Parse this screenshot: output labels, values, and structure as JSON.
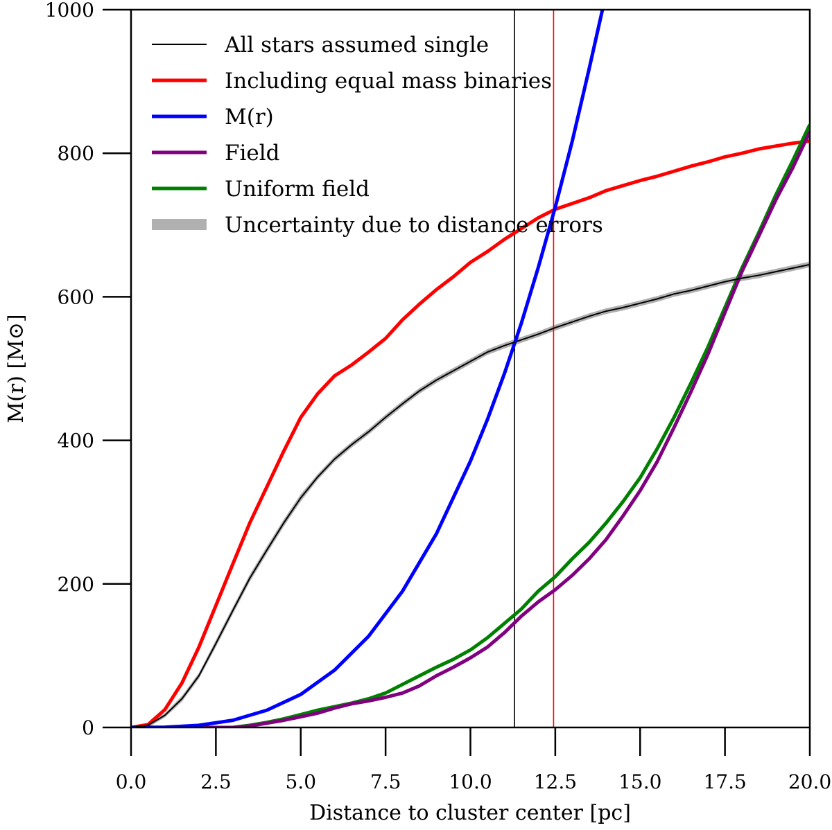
{
  "chart_data": {
    "type": "line",
    "xlabel": "Distance to cluster center [pc]",
    "ylabel": "M(r) [M⊙]",
    "xlim": [
      0,
      20
    ],
    "ylim": [
      0,
      1000
    ],
    "xticks": [
      0,
      2.5,
      5,
      7.5,
      10,
      12.5,
      15,
      17.5,
      20
    ],
    "xtick_labels": [
      "0.0",
      "2.5",
      "5.0",
      "7.5",
      "10.0",
      "12.5",
      "15.0",
      "17.5",
      "20.0"
    ],
    "yticks": [
      0,
      200,
      400,
      600,
      800,
      1000
    ],
    "ytick_labels": [
      "0",
      "200",
      "400",
      "600",
      "800",
      "1000"
    ],
    "grid": false,
    "legend_position": "upper-left",
    "vertical_lines": [
      {
        "x": 11.3,
        "color": "#000000"
      },
      {
        "x": 12.45,
        "color": "#ff0000"
      }
    ],
    "uncertainty_band": {
      "name": "Uncertainty due to distance errors",
      "color": "#b0b0b0",
      "x": [
        0,
        0.5,
        1,
        1.5,
        2,
        2.5,
        3,
        3.5,
        4,
        4.5,
        5,
        5.5,
        6,
        6.5,
        7,
        7.5,
        8,
        8.5,
        9,
        9.5,
        10,
        10.5,
        11,
        11.5,
        12,
        12.5,
        13,
        13.5,
        14,
        14.5,
        15,
        15.5,
        16,
        16.5,
        17,
        17.5,
        18,
        18.5,
        19,
        19.5,
        20
      ],
      "lower": [
        0,
        0,
        14,
        36,
        68,
        112,
        158,
        203,
        242,
        280,
        315,
        345,
        370,
        390,
        408,
        428,
        447,
        465,
        480,
        493,
        506,
        519,
        528,
        536,
        544,
        553,
        561,
        569,
        576,
        581,
        587,
        593,
        600,
        605,
        611,
        617,
        622,
        626,
        631,
        636,
        641
      ],
      "upper": [
        2,
        6,
        20,
        44,
        76,
        122,
        168,
        213,
        252,
        290,
        325,
        353,
        378,
        398,
        416,
        436,
        455,
        473,
        488,
        501,
        514,
        527,
        536,
        544,
        552,
        561,
        569,
        577,
        584,
        589,
        595,
        601,
        608,
        613,
        619,
        625,
        630,
        634,
        639,
        644,
        649
      ]
    },
    "series": [
      {
        "name": "All stars assumed single",
        "color": "#000000",
        "x": [
          0,
          0.5,
          1,
          1.5,
          2,
          2.5,
          3,
          3.5,
          4,
          4.5,
          5,
          5.5,
          6,
          6.5,
          7,
          7.5,
          8,
          8.5,
          9,
          9.5,
          10,
          10.5,
          11,
          11.5,
          12,
          12.5,
          13,
          13.5,
          14,
          14.5,
          15,
          15.5,
          16,
          16.5,
          17,
          17.5,
          18,
          18.5,
          19,
          19.5,
          20
        ],
        "y": [
          0,
          3,
          17,
          40,
          72,
          117,
          163,
          208,
          247,
          285,
          320,
          349,
          374,
          394,
          412,
          432,
          451,
          469,
          484,
          497,
          510,
          523,
          532,
          540,
          548,
          557,
          565,
          573,
          580,
          585,
          591,
          597,
          604,
          609,
          615,
          621,
          626,
          630,
          635,
          640,
          645
        ]
      },
      {
        "name": "Including equal mass binaries",
        "color": "#ff0000",
        "x": [
          0,
          0.5,
          1,
          1.5,
          2,
          2.5,
          3,
          3.5,
          4,
          4.5,
          5,
          5.5,
          6,
          6.5,
          7,
          7.5,
          8,
          8.5,
          9,
          9.5,
          10,
          10.5,
          11,
          11.5,
          12,
          12.5,
          13,
          13.5,
          14,
          14.5,
          15,
          15.5,
          16,
          16.5,
          17,
          17.5,
          18,
          18.5,
          19,
          19.5,
          20
        ],
        "y": [
          0,
          4,
          25,
          62,
          112,
          170,
          228,
          285,
          335,
          385,
          432,
          465,
          490,
          505,
          523,
          542,
          568,
          590,
          610,
          628,
          648,
          663,
          680,
          695,
          710,
          722,
          730,
          738,
          748,
          755,
          762,
          768,
          775,
          782,
          788,
          795,
          800,
          806,
          810,
          814,
          817
        ]
      },
      {
        "name": "M(r)",
        "color": "#0000ff",
        "x": [
          0,
          1,
          2,
          3,
          4,
          5,
          6,
          7,
          8,
          9,
          10,
          10.5,
          11,
          11.5,
          12,
          12.5,
          13,
          13.5,
          13.9
        ],
        "y": [
          0,
          0.4,
          3,
          10,
          24,
          46,
          80,
          127,
          190,
          270,
          371,
          429,
          493,
          563,
          641,
          725,
          817,
          918,
          1002
        ]
      },
      {
        "name": "Field",
        "color": "#800080",
        "x": [
          0,
          1,
          2,
          3,
          3.5,
          4,
          4.5,
          5,
          5.5,
          6,
          6.5,
          7,
          7.5,
          8,
          8.5,
          9,
          9.5,
          10,
          10.5,
          11,
          11.5,
          12,
          12.5,
          13,
          13.5,
          14,
          14.5,
          15,
          15.5,
          16,
          16.5,
          17,
          17.5,
          18,
          18.5,
          19,
          19.5,
          20
        ],
        "y": [
          0,
          0,
          0,
          0,
          2,
          6,
          10,
          15,
          20,
          27,
          33,
          37,
          42,
          48,
          58,
          72,
          84,
          97,
          112,
          132,
          155,
          175,
          192,
          212,
          235,
          262,
          295,
          330,
          370,
          418,
          468,
          520,
          578,
          635,
          685,
          735,
          780,
          830
        ]
      },
      {
        "name": "Uniform field",
        "color": "#008000",
        "x": [
          0,
          1,
          2,
          3,
          3.5,
          4,
          4.5,
          5,
          5.5,
          6,
          6.5,
          7,
          7.5,
          8,
          8.5,
          9,
          9.5,
          10,
          10.5,
          11,
          11.5,
          12,
          12.5,
          13,
          13.5,
          14,
          14.5,
          15,
          15.5,
          16,
          16.5,
          17,
          17.5,
          18,
          18.5,
          19,
          19.5,
          20
        ],
        "y": [
          0,
          0,
          0,
          0,
          3,
          7,
          12,
          18,
          24,
          29,
          34,
          40,
          48,
          60,
          72,
          84,
          95,
          108,
          125,
          145,
          165,
          190,
          210,
          235,
          258,
          285,
          315,
          348,
          388,
          432,
          480,
          530,
          585,
          640,
          690,
          742,
          790,
          840
        ]
      }
    ]
  }
}
